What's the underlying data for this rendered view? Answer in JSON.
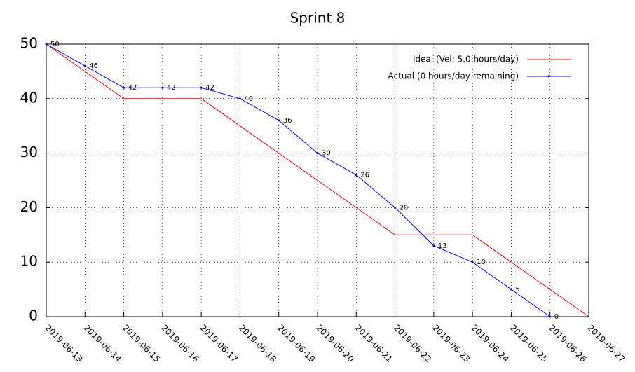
{
  "chart_data": {
    "type": "line",
    "title": "Sprint 8",
    "categories": [
      "2019-06-13",
      "2019-06-14",
      "2019-06-15",
      "2019-06-16",
      "2019-06-17",
      "2019-06-18",
      "2019-06-19",
      "2019-06-20",
      "2019-06-21",
      "2019-06-22",
      "2019-06-23",
      "2019-06-24",
      "2019-06-25",
      "2019-06-26",
      "2019-06-27"
    ],
    "series": [
      {
        "name": "Ideal (Vel: 5.0 hours/day)",
        "color": "#ff0000",
        "values": [
          50,
          45,
          40,
          40,
          40,
          35,
          30,
          25,
          20,
          15,
          15,
          15,
          10,
          5,
          0
        ]
      },
      {
        "name": "Actual (0 hours/day remaining)",
        "color": "#0000ff",
        "values": [
          50,
          46,
          42,
          42,
          42,
          40,
          36,
          30,
          26,
          20,
          13,
          10,
          5,
          0,
          null
        ],
        "markers": true,
        "data_labels": true
      }
    ],
    "ylim": [
      0,
      50
    ],
    "yticks": [
      0,
      10,
      20,
      30,
      40,
      50
    ],
    "grid": true,
    "legend": "top-right"
  }
}
